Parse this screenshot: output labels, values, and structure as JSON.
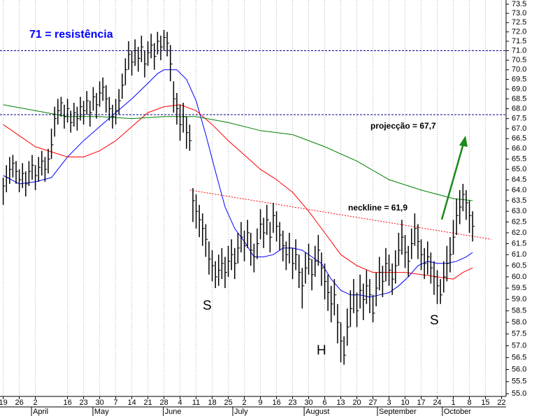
{
  "chart_data": {
    "type": "ohlc",
    "log_scale": true,
    "grid": "x",
    "bar_color": "#000000",
    "ylim": [
      54.89,
      73.73
    ],
    "yticks": [
      {
        "value": 55,
        "label": "55.0"
      },
      55.5,
      {
        "value": 56,
        "label": "56.0"
      },
      56.5,
      {
        "value": 57,
        "label": "57.0"
      },
      57.5,
      {
        "value": 58,
        "label": "58.0"
      },
      58.5,
      {
        "value": 59,
        "label": "59.0"
      },
      59.5,
      {
        "value": 60,
        "label": "60.0"
      },
      60.5,
      {
        "value": 61,
        "label": "61.0"
      },
      61.5,
      {
        "value": 62,
        "label": "62.0"
      },
      62.5,
      {
        "value": 63,
        "label": "63.0"
      },
      63.5,
      {
        "value": 64,
        "label": "64.0"
      },
      64.5,
      {
        "value": 65,
        "label": "65.0"
      },
      65.5,
      {
        "value": 66,
        "label": "66.0"
      },
      66.5,
      {
        "value": 67,
        "label": "67.0"
      },
      67.5,
      {
        "value": 68,
        "label": "68.0"
      },
      68.5,
      {
        "value": 69,
        "label": "69.0"
      },
      69.5,
      {
        "value": 70,
        "label": "70.0"
      },
      70.5,
      {
        "value": 71,
        "label": "71.0"
      },
      71.5,
      {
        "value": 72,
        "label": "72.0"
      },
      72.5,
      {
        "value": 73,
        "label": "73.0"
      },
      73.5
    ],
    "xlim": [
      -1,
      156.4
    ],
    "xticks": [
      {
        "value": 0,
        "label": "19"
      },
      {
        "value": 5,
        "label": "26"
      },
      {
        "value": 10,
        "label": "2"
      },
      {
        "value": 20,
        "label": "16"
      },
      {
        "value": 25,
        "label": "23"
      },
      {
        "value": 30,
        "label": "30"
      },
      {
        "value": 35,
        "label": "7"
      },
      {
        "value": 40,
        "label": "14"
      },
      {
        "value": 45,
        "label": "21"
      },
      {
        "value": 50,
        "label": "28"
      },
      {
        "value": 55,
        "label": "4"
      },
      {
        "value": 60,
        "label": "11"
      },
      {
        "value": 65,
        "label": "18"
      },
      {
        "value": 70,
        "label": "25"
      },
      {
        "value": 75,
        "label": "2"
      },
      {
        "value": 80,
        "label": "9"
      },
      {
        "value": 85,
        "label": "16"
      },
      {
        "value": 90,
        "label": "23"
      },
      {
        "value": 95,
        "label": "30"
      },
      {
        "value": 100,
        "label": "6"
      },
      {
        "value": 105,
        "label": "13"
      },
      {
        "value": 110,
        "label": "20"
      },
      {
        "value": 115,
        "label": "27"
      },
      {
        "value": 120,
        "label": "3"
      },
      {
        "value": 125,
        "label": "10"
      },
      {
        "value": 130,
        "label": "17"
      },
      {
        "value": 135,
        "label": "24"
      },
      {
        "value": 140,
        "label": "1"
      },
      {
        "value": 145,
        "label": "8"
      },
      {
        "value": 150,
        "label": "15"
      },
      {
        "value": 155,
        "label": "22"
      }
    ],
    "month_ticks": [
      {
        "value": 8.8,
        "label": "April"
      },
      {
        "value": 27.9,
        "label": "May"
      },
      {
        "value": 49.8,
        "label": "June"
      },
      {
        "value": 71.4,
        "label": "July"
      },
      {
        "value": 93.6,
        "label": "August"
      },
      {
        "value": 116.4,
        "label": "September"
      },
      {
        "value": 136.6,
        "label": "October"
      }
    ],
    "bars": {
      "x": [
        0,
        1,
        2,
        3,
        4,
        5,
        6,
        7,
        8,
        9,
        10,
        11,
        12,
        13,
        14,
        15,
        16,
        17,
        18,
        19,
        20,
        21,
        22,
        23,
        24,
        25,
        26,
        27,
        28,
        29,
        30,
        31,
        32,
        33,
        34,
        35,
        36,
        37,
        38,
        39,
        40,
        41,
        42,
        43,
        44,
        45,
        46,
        47,
        48,
        49,
        50,
        51,
        52,
        53,
        54,
        55,
        56,
        57,
        58,
        59,
        60,
        61,
        62,
        63,
        64,
        65,
        66,
        67,
        68,
        69,
        70,
        71,
        72,
        73,
        74,
        75,
        76,
        77,
        78,
        79,
        80,
        81,
        82,
        83,
        84,
        85,
        86,
        87,
        88,
        89,
        90,
        91,
        92,
        93,
        94,
        95,
        96,
        97,
        98,
        99,
        100,
        101,
        102,
        103,
        104,
        105,
        106,
        107,
        108,
        109,
        110,
        111,
        112,
        113,
        114,
        115,
        116,
        117,
        118,
        119,
        120,
        121,
        122,
        123,
        124,
        125,
        126,
        127,
        128,
        129,
        130,
        131,
        132,
        133,
        134,
        135,
        136,
        137,
        138,
        139,
        140,
        141,
        142,
        143,
        144,
        145,
        146
      ],
      "high": [
        64.6,
        65.2,
        65.6,
        65.7,
        65.4,
        65.0,
        65.3,
        64.9,
        65.4,
        65.7,
        65.2,
        65.6,
        65.9,
        65.6,
        66.0,
        67.0,
        68.1,
        68.5,
        68.6,
        68.2,
        68.5,
        67.9,
        68.3,
        68.1,
        68.6,
        68.4,
        68.9,
        68.4,
        69.1,
        68.8,
        69.4,
        69.6,
        69.2,
        68.6,
        68.2,
        68.5,
        69.0,
        69.8,
        70.6,
        71.5,
        71.0,
        71.6,
        71.2,
        71.8,
        71.0,
        71.5,
        71.9,
        71.4,
        72.0,
        71.8,
        72.1,
        72.0,
        71.3,
        69.4,
        68.8,
        68.2,
        68.3,
        67.6,
        67.2,
        64.1,
        63.8,
        63.3,
        62.9,
        62.4,
        61.6,
        61.2,
        60.7,
        61.0,
        61.3,
        60.9,
        61.4,
        61.7,
        61.3,
        62.0,
        62.5,
        62.1,
        62.6,
        62.0,
        61.5,
        62.2,
        63.1,
        62.7,
        63.3,
        62.5,
        63.4,
        63.0,
        62.5,
        62.1,
        61.6,
        62.0,
        61.3,
        61.7,
        61.0,
        60.4,
        61.1,
        61.5,
        60.8,
        61.4,
        61.9,
        61.1,
        60.6,
        60.1,
        59.6,
        59.9,
        58.8,
        58.0,
        57.4,
        58.6,
        59.4,
        59.9,
        59.3,
        60.1,
        59.7,
        60.3,
        59.9,
        59.2,
        60.2,
        60.9,
        60.5,
        61.3,
        61.0,
        60.6,
        61.2,
        62.0,
        62.6,
        61.9,
        61.4,
        62.2,
        62.9,
        62.4,
        61.7,
        61.3,
        61.6,
        61.1,
        60.7,
        60.3,
        59.9,
        60.7,
        61.4,
        61.8,
        62.6,
        63.6,
        64.0,
        64.3,
        64.0,
        63.5,
        63.0
      ],
      "low": [
        63.3,
        63.9,
        64.3,
        64.6,
        64.3,
        63.9,
        64.1,
        63.7,
        64.2,
        64.5,
        64.0,
        64.4,
        64.7,
        64.4,
        64.8,
        65.5,
        66.6,
        67.2,
        67.6,
        67.0,
        67.3,
        66.8,
        67.1,
        66.9,
        67.4,
        67.2,
        67.7,
        67.1,
        67.9,
        67.5,
        68.1,
        68.4,
        67.8,
        67.4,
        67.0,
        67.2,
        67.7,
        68.5,
        69.2,
        70.0,
        69.7,
        70.2,
        69.9,
        70.4,
        69.6,
        70.2,
        70.6,
        70.0,
        70.8,
        70.5,
        71.0,
        70.7,
        69.4,
        67.8,
        67.2,
        66.4,
        66.8,
        66.0,
        65.9,
        62.5,
        62.2,
        61.8,
        61.4,
        60.9,
        60.1,
        59.8,
        59.5,
        59.6,
        59.9,
        59.5,
        60.0,
        60.3,
        59.9,
        60.6,
        61.1,
        60.7,
        61.3,
        60.5,
        60.2,
        60.8,
        61.7,
        61.3,
        61.9,
        61.1,
        62.0,
        61.6,
        61.2,
        60.7,
        60.3,
        60.6,
        59.9,
        60.3,
        59.5,
        58.6,
        59.7,
        60.1,
        59.4,
        60.0,
        60.5,
        59.6,
        59.0,
        58.5,
        58.0,
        58.3,
        57.1,
        56.3,
        56.2,
        57.0,
        57.8,
        58.4,
        57.8,
        58.6,
        58.1,
        58.8,
        58.4,
        58.0,
        58.7,
        59.4,
        59.1,
        59.8,
        59.6,
        59.2,
        59.7,
        60.5,
        61.0,
        60.4,
        60.0,
        60.8,
        61.4,
        60.8,
        60.3,
        59.9,
        60.1,
        59.7,
        59.2,
        58.8,
        58.8,
        59.3,
        59.8,
        60.2,
        61.0,
        61.9,
        62.4,
        63.0,
        62.6,
        62.0,
        61.6
      ],
      "close": [
        64.2,
        64.6,
        65.0,
        65.3,
        64.9,
        64.5,
        64.8,
        64.3,
        64.9,
        65.2,
        64.7,
        65.1,
        65.4,
        65.0,
        65.5,
        66.2,
        67.5,
        67.9,
        68.3,
        67.6,
        68.0,
        67.3,
        67.8,
        67.5,
        68.1,
        67.9,
        68.4,
        67.8,
        68.6,
        68.2,
        68.8,
        69.1,
        68.5,
        68.0,
        67.6,
        67.9,
        68.4,
        69.2,
        70.0,
        70.8,
        70.4,
        71.0,
        70.6,
        71.2,
        70.3,
        70.9,
        71.3,
        70.7,
        71.5,
        71.2,
        71.7,
        71.4,
        70.3,
        68.5,
        68.0,
        67.2,
        67.6,
        66.8,
        66.4,
        63.5,
        63.0,
        62.6,
        62.2,
        61.7,
        60.8,
        60.5,
        60.0,
        60.3,
        60.6,
        60.2,
        60.7,
        61.0,
        60.6,
        61.3,
        61.8,
        61.4,
        62.0,
        61.2,
        60.9,
        61.5,
        62.4,
        62.0,
        62.6,
        61.8,
        62.8,
        62.3,
        61.9,
        61.4,
        61.0,
        61.3,
        60.6,
        61.0,
        60.2,
        59.6,
        60.4,
        60.8,
        60.1,
        60.7,
        61.2,
        60.4,
        59.8,
        59.3,
        58.8,
        59.2,
        58.0,
        57.2,
        56.6,
        57.8,
        58.6,
        59.2,
        58.5,
        59.4,
        59.0,
        59.6,
        59.2,
        58.4,
        59.5,
        60.2,
        59.8,
        60.6,
        60.3,
        59.9,
        60.5,
        61.2,
        61.8,
        61.1,
        60.7,
        61.5,
        62.2,
        61.6,
        61.0,
        60.6,
        60.9,
        60.4,
        60.0,
        59.6,
        59.2,
        60.0,
        60.6,
        61.0,
        61.8,
        62.8,
        63.2,
        63.8,
        63.4,
        62.8,
        62.3
      ]
    },
    "series": [
      {
        "color": "#0000ff",
        "x": [
          0,
          5,
          10,
          15,
          20,
          25,
          30,
          35,
          40,
          45,
          48,
          50,
          54,
          57,
          60,
          63,
          66,
          69,
          72,
          75,
          78,
          81,
          84,
          87,
          90,
          93,
          96,
          99,
          102,
          105,
          108,
          111,
          114,
          117,
          120,
          123,
          126,
          129,
          132,
          135,
          138,
          141,
          144,
          146
        ],
        "values": [
          64.7,
          64.3,
          64.4,
          64.6,
          65.6,
          66.4,
          67.1,
          67.8,
          68.5,
          69.3,
          69.8,
          70.0,
          70.0,
          69.5,
          68.4,
          66.7,
          64.9,
          63.2,
          62.2,
          61.6,
          60.9,
          60.9,
          61.0,
          61.3,
          61.3,
          61.2,
          60.9,
          60.6,
          59.9,
          59.4,
          59.2,
          59.2,
          59.1,
          59.2,
          59.3,
          59.6,
          60.0,
          60.5,
          60.7,
          60.6,
          60.6,
          60.7,
          60.9,
          61.1
        ]
      },
      {
        "color": "#ff0000",
        "x": [
          0,
          10,
          20,
          25,
          30,
          35,
          40,
          45,
          50,
          55,
          60,
          65,
          70,
          75,
          80,
          85,
          90,
          95,
          100,
          105,
          110,
          115,
          120,
          125,
          130,
          135,
          140,
          143,
          146
        ],
        "values": [
          67.2,
          66.1,
          65.6,
          65.6,
          65.9,
          66.4,
          67.1,
          67.8,
          68.1,
          68.2,
          67.9,
          67.2,
          66.4,
          65.7,
          65.0,
          64.5,
          63.9,
          63.0,
          62.0,
          61.0,
          60.5,
          60.2,
          60.2,
          60.2,
          60.1,
          60.0,
          59.9,
          60.2,
          60.4
        ]
      },
      {
        "color": "#008000",
        "x": [
          0,
          10,
          20,
          30,
          40,
          50,
          60,
          70,
          80,
          90,
          100,
          110,
          120,
          130,
          140,
          146
        ],
        "values": [
          68.2,
          67.9,
          67.6,
          67.6,
          67.5,
          67.6,
          67.6,
          67.3,
          66.9,
          66.7,
          66.1,
          65.4,
          64.5,
          64.0,
          63.6,
          63.5
        ]
      }
    ],
    "hlines": [
      {
        "value": 71,
        "color": "#00008b"
      },
      {
        "value": 67.7,
        "color": "#00008b"
      }
    ],
    "neckline": {
      "color": "#ff0000",
      "x": [
        58.1,
        151.8
      ],
      "values": [
        64.0,
        61.7
      ]
    },
    "annotations": [
      "71 = resistência",
      "projecção = 67,7",
      "neckline = 61,9",
      "S",
      "H",
      "S"
    ]
  }
}
